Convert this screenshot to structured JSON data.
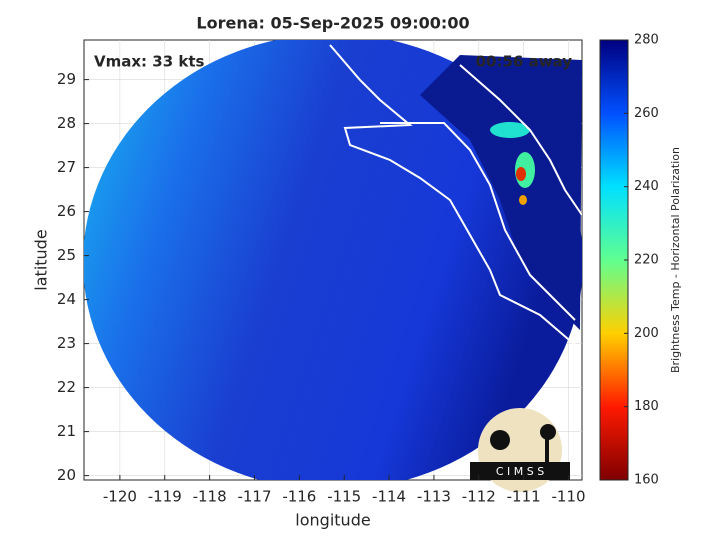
{
  "chart_data": {
    "type": "map",
    "title": "Lorena: 05-Sep-2025 09:00:00",
    "annotations": [
      "Vmax: 33 kts",
      "00:56 away"
    ],
    "xlabel": "longitude",
    "ylabel": "latitude",
    "xlim": [
      -120.8,
      -109.7
    ],
    "xticks": [
      -120,
      -119,
      -118,
      -117,
      -116,
      -115,
      -114,
      -113,
      -112,
      -111,
      -110
    ],
    "ylim": [
      19.9,
      29.9
    ],
    "yticks": [
      20,
      21,
      22,
      23,
      24,
      25,
      26,
      27,
      28,
      29
    ],
    "grid": true,
    "colorbar": {
      "label": "Brightness Temp - Horizontal Polarization",
      "lim": [
        160,
        280
      ],
      "ticks": [
        160,
        180,
        200,
        220,
        240,
        260,
        280
      ],
      "colors": [
        "#7f0000",
        "#ff1a00",
        "#ffd000",
        "#60ff90",
        "#00e0ff",
        "#0050ff",
        "#000080"
      ]
    },
    "logo_text": "C I M S S"
  }
}
